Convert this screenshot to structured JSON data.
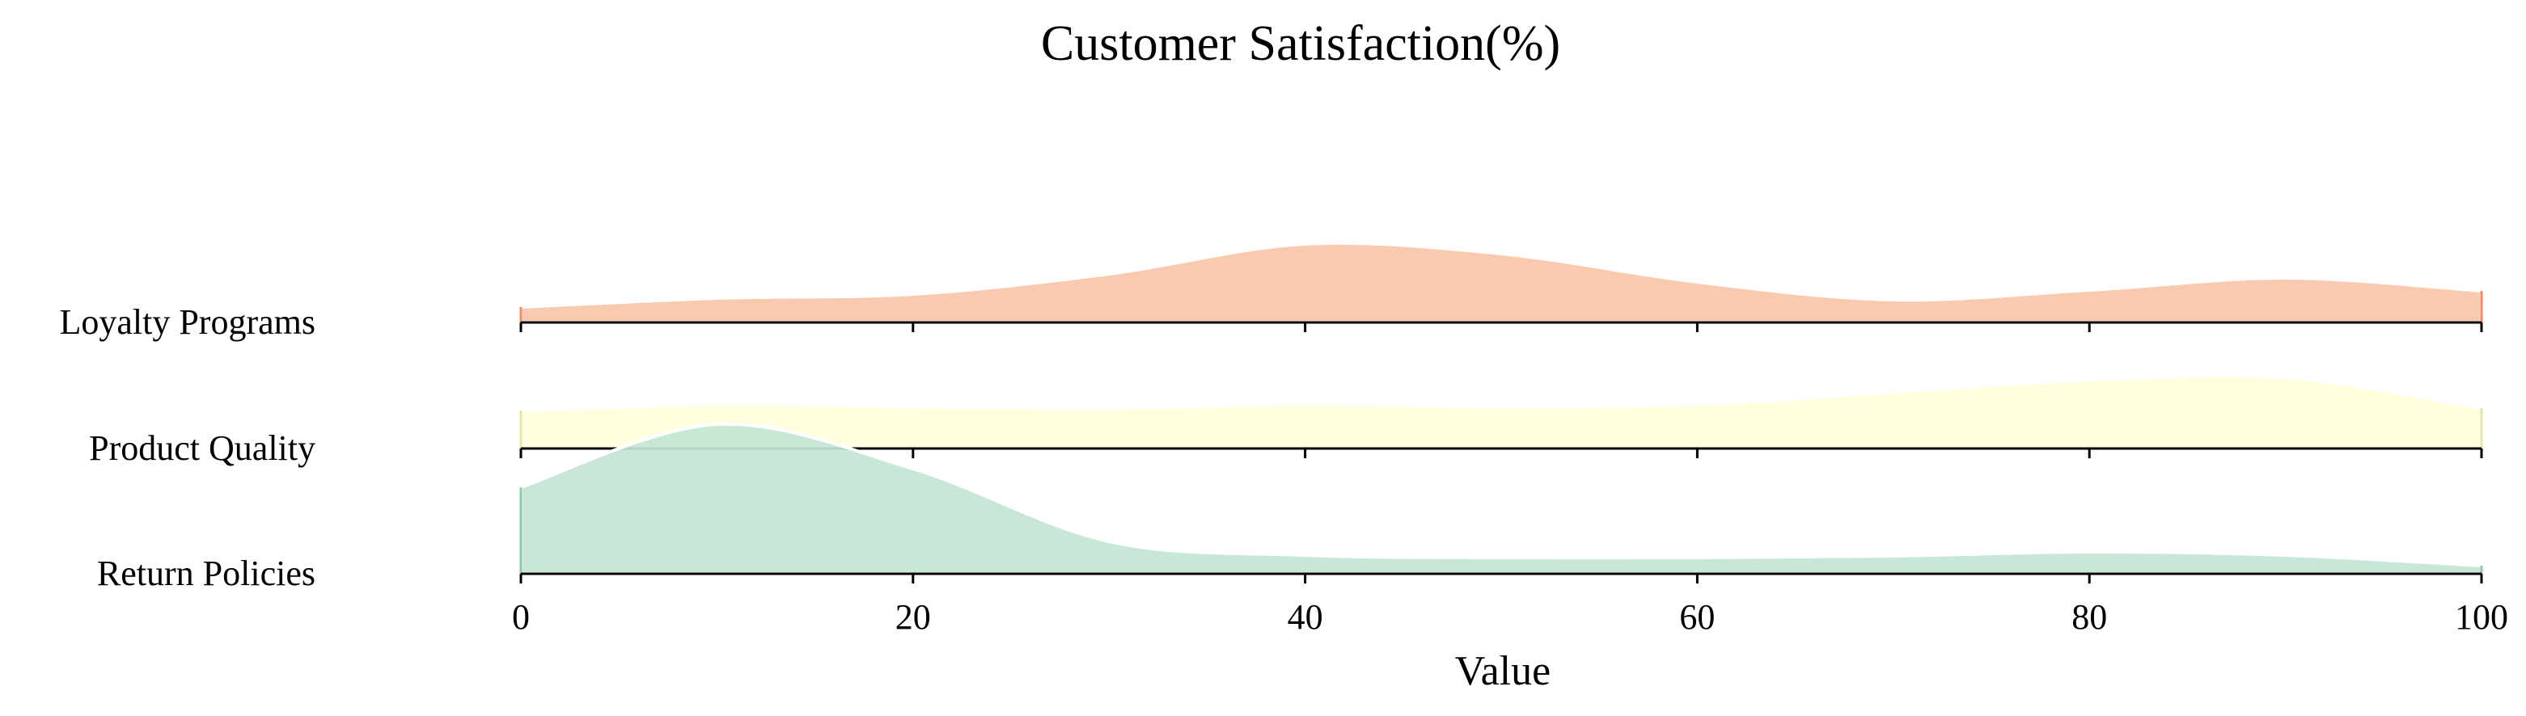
{
  "chart_data": {
    "type": "area",
    "subtype": "ridgeline",
    "title": "Customer Satisfaction(%)",
    "xlabel": "Value",
    "ylabel": "",
    "xlim": [
      0,
      100
    ],
    "x_ticks": [
      0,
      20,
      40,
      60,
      80,
      100
    ],
    "grid": false,
    "legend": "none",
    "x": [
      0,
      10,
      20,
      30,
      40,
      50,
      60,
      70,
      80,
      90,
      100
    ],
    "series": [
      {
        "name": "Loyalty Programs",
        "color": "#f9c5a8",
        "edge_color": "#f08a5d",
        "values": [
          0.19,
          0.3,
          0.35,
          0.6,
          0.97,
          0.85,
          0.5,
          0.28,
          0.4,
          0.55,
          0.39
        ]
      },
      {
        "name": "Product Quality",
        "color": "#ffffdd",
        "edge_color": "#e8e4a0",
        "values": [
          0.47,
          0.55,
          0.52,
          0.5,
          0.55,
          0.52,
          0.55,
          0.7,
          0.85,
          0.88,
          0.5
        ]
      },
      {
        "name": "Return Policies",
        "color": "#c4e5d4",
        "edge_color": "#8ccba6",
        "values": [
          1.07,
          1.85,
          1.3,
          0.4,
          0.23,
          0.2,
          0.2,
          0.22,
          0.27,
          0.23,
          0.1
        ]
      }
    ]
  }
}
